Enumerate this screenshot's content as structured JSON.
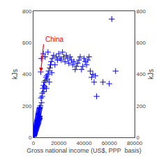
{
  "chart_data": {
    "type": "scatter",
    "xlabel": "Gross national income (US$, PPP  basis)",
    "ylabel": "kJs",
    "y2label": "kJs",
    "xlim": [
      0,
      80000
    ],
    "ylim": [
      0,
      800
    ],
    "y2lim": [
      0,
      800
    ],
    "xticks": [
      0,
      20000,
      40000,
      60000,
      80000
    ],
    "yticks": [
      0,
      200,
      400,
      600,
      800
    ],
    "y2ticks": [
      0,
      200,
      400,
      600,
      800
    ],
    "grid": false,
    "marker": "+",
    "color": "#0000FF",
    "x": [
      300,
      400,
      500,
      600,
      700,
      800,
      900,
      1000,
      1100,
      1200,
      1300,
      1400,
      1500,
      1600,
      1700,
      1800,
      1900,
      2000,
      2100,
      2200,
      2300,
      2400,
      2500,
      2600,
      2700,
      2800,
      2900,
      3000,
      3100,
      3200,
      3300,
      3400,
      3500,
      3600,
      3700,
      3800,
      3900,
      4000,
      4100,
      4200,
      4300,
      4400,
      4500,
      4600,
      4700,
      4800,
      4900,
      5000,
      200,
      350,
      450,
      550,
      650,
      750,
      850,
      950,
      1050,
      1150,
      1250,
      1350,
      1450,
      1550,
      1650,
      1750,
      1850,
      1950,
      2050,
      2150,
      2250,
      2350,
      2450,
      2550,
      2650,
      2750,
      2850,
      2950,
      3050,
      3150,
      3250,
      3350,
      3450,
      3550,
      3650,
      3750,
      3850,
      3950,
      4050,
      4150,
      4250,
      4350,
      4450,
      4550,
      4650,
      4750,
      4850,
      4950,
      5800,
      5500,
      6000,
      6500,
      7000,
      7500,
      8000,
      8500,
      9000,
      9500,
      10000,
      10500,
      11000,
      11500,
      12000,
      12500,
      13000,
      13500,
      14000,
      14500,
      15000,
      16000,
      17000,
      18000,
      19000,
      20000,
      21000,
      22000,
      23000,
      24000,
      25000,
      26000,
      27000,
      28000,
      29000,
      30000,
      31000,
      32000,
      33000,
      34000,
      35000,
      36000,
      37000,
      38000,
      39000,
      40000,
      41000,
      42000,
      43000,
      44000,
      45000,
      46000,
      47000,
      48000,
      49000,
      50000,
      55000,
      60000,
      62000,
      65000,
      6200,
      7800,
      9200,
      11500,
      5200,
      6800,
      8200,
      10200
    ],
    "values": [
      10,
      12,
      8,
      15,
      18,
      22,
      25,
      20,
      30,
      35,
      28,
      40,
      45,
      38,
      50,
      55,
      42,
      60,
      48,
      65,
      52,
      70,
      58,
      75,
      62,
      80,
      68,
      85,
      72,
      90,
      78,
      95,
      82,
      100,
      88,
      105,
      92,
      110,
      98,
      115,
      120,
      108,
      125,
      112,
      130,
      118,
      135,
      122,
      5,
      8,
      12,
      10,
      16,
      20,
      24,
      28,
      32,
      36,
      40,
      44,
      48,
      52,
      56,
      60,
      64,
      68,
      72,
      76,
      80,
      84,
      88,
      92,
      96,
      100,
      104,
      108,
      112,
      116,
      120,
      124,
      128,
      132,
      136,
      140,
      144,
      148,
      152,
      156,
      160,
      164,
      168,
      172,
      176,
      180,
      184,
      188,
      415,
      200,
      250,
      220,
      280,
      310,
      330,
      350,
      320,
      360,
      380,
      390,
      370,
      400,
      420,
      350,
      440,
      460,
      480,
      410,
      500,
      520,
      460,
      510,
      490,
      530,
      500,
      490,
      540,
      510,
      480,
      520,
      500,
      470,
      510,
      490,
      460,
      480,
      430,
      450,
      470,
      490,
      510,
      430,
      450,
      500,
      480,
      460,
      490,
      510,
      420,
      380,
      400,
      350,
      390,
      260,
      350,
      340,
      750,
      420,
      500,
      530,
      510,
      540,
      190,
      260,
      290,
      310
    ],
    "annotations": [
      {
        "text": "China",
        "x": 5800,
        "y": 415,
        "text_x": 8000,
        "text_y": 590,
        "color": "#FF0000"
      }
    ]
  }
}
